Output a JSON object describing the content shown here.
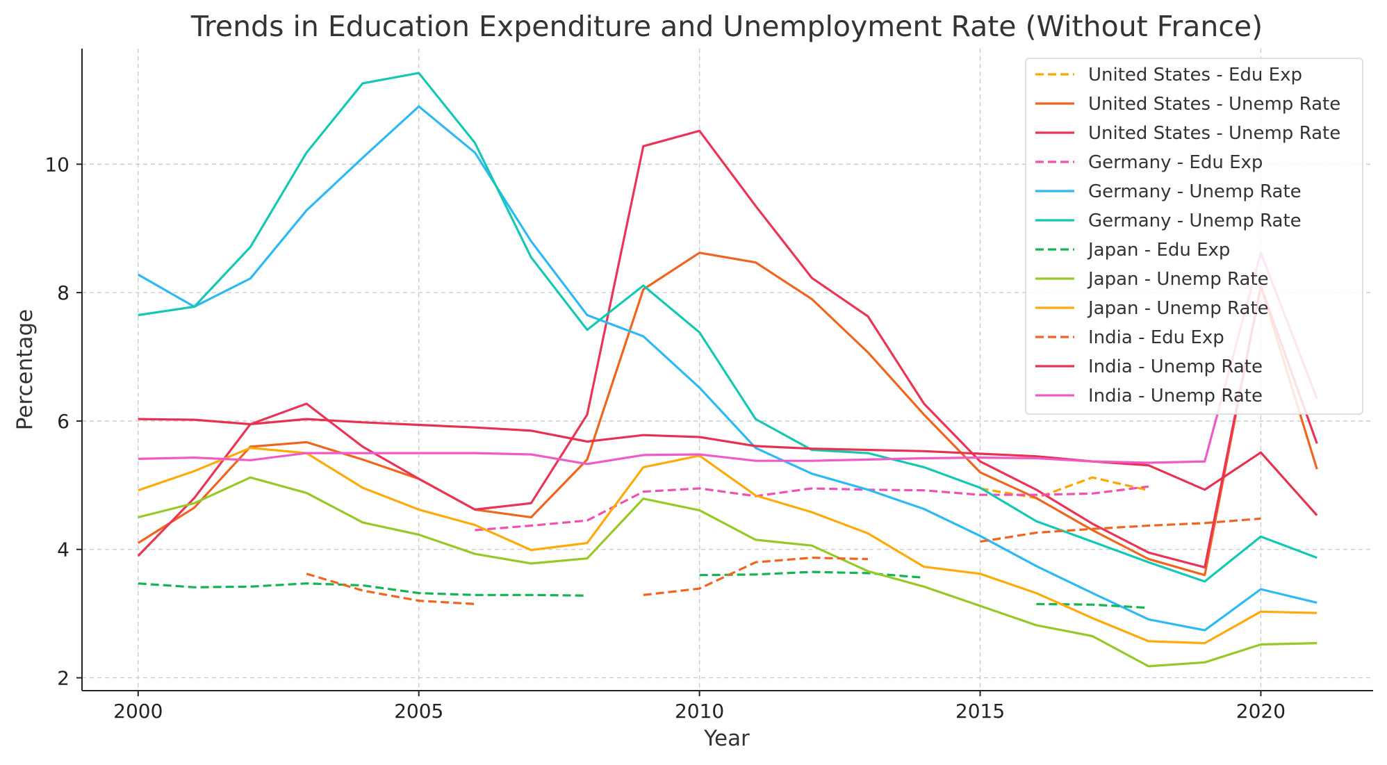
{
  "chart_data": {
    "type": "line",
    "title": "Trends in Education Expenditure and Unemployment Rate (Without France)",
    "xlabel": "Year",
    "ylabel": "Percentage",
    "xlim": [
      1999,
      2022
    ],
    "ylim": [
      1.8,
      11.8
    ],
    "xticks": [
      2000,
      2005,
      2010,
      2015,
      2020
    ],
    "yticks": [
      2,
      4,
      6,
      8,
      10
    ],
    "grid": true,
    "legend_position": "top-right",
    "x": [
      2000,
      2001,
      2002,
      2003,
      2004,
      2005,
      2006,
      2007,
      2008,
      2009,
      2010,
      2011,
      2012,
      2013,
      2014,
      2015,
      2016,
      2017,
      2018,
      2019,
      2020,
      2021
    ],
    "series": [
      {
        "name": "United States - Edu Exp",
        "color": "#ffa500",
        "dash": true,
        "values": [
          null,
          null,
          null,
          null,
          null,
          null,
          null,
          null,
          null,
          null,
          null,
          null,
          null,
          null,
          null,
          4.95,
          4.8,
          5.12,
          4.92,
          null,
          null,
          null
        ]
      },
      {
        "name": "United States - Unemp Rate",
        "color": "#f0641e",
        "dash": false,
        "values": [
          4.1,
          4.65,
          5.6,
          5.67,
          5.4,
          5.1,
          4.62,
          4.5,
          5.4,
          8.05,
          8.62,
          8.47,
          7.9,
          7.07,
          6.1,
          5.2,
          4.8,
          4.3,
          3.85,
          3.6,
          8.1,
          5.25
        ]
      },
      {
        "name": "United States - Unemp Rate",
        "color": "#eb3356",
        "dash": false,
        "values": [
          3.9,
          4.8,
          5.95,
          6.27,
          5.6,
          5.1,
          4.62,
          4.72,
          6.1,
          10.28,
          10.52,
          9.35,
          8.23,
          7.63,
          6.27,
          5.37,
          4.93,
          4.4,
          3.95,
          3.72,
          8.1,
          5.65
        ]
      },
      {
        "name": "Germany - Edu Exp",
        "color": "#f050b4",
        "dash": true,
        "values": [
          null,
          null,
          null,
          null,
          null,
          null,
          4.3,
          4.37,
          4.45,
          4.9,
          4.95,
          4.83,
          4.95,
          4.93,
          4.92,
          4.85,
          4.85,
          4.87,
          4.98,
          null,
          null,
          null
        ]
      },
      {
        "name": "Germany - Unemp Rate",
        "color": "#2db9f5",
        "dash": false,
        "values": [
          8.28,
          7.78,
          8.22,
          9.28,
          10.1,
          10.9,
          10.18,
          8.8,
          7.65,
          7.32,
          6.52,
          5.58,
          5.18,
          4.93,
          4.63,
          4.21,
          3.74,
          3.32,
          2.91,
          2.74,
          3.38,
          3.17
        ]
      },
      {
        "name": "Germany - Unemp Rate",
        "color": "#14c8b4",
        "dash": false,
        "values": [
          7.65,
          7.78,
          8.71,
          10.18,
          11.26,
          11.42,
          10.33,
          8.55,
          7.42,
          8.11,
          7.38,
          6.03,
          5.55,
          5.5,
          5.28,
          4.96,
          4.44,
          4.12,
          3.8,
          3.5,
          4.2,
          3.87
        ]
      },
      {
        "name": "Japan - Edu Exp",
        "color": "#14b450",
        "dash": true,
        "values": [
          3.47,
          3.41,
          3.42,
          3.47,
          3.44,
          3.32,
          3.29,
          3.29,
          3.28,
          null,
          3.6,
          3.61,
          3.65,
          3.63,
          3.56,
          null,
          3.15,
          3.14,
          3.09,
          null,
          null,
          null
        ]
      },
      {
        "name": "Japan - Unemp Rate",
        "color": "#96c828",
        "dash": false,
        "values": [
          4.5,
          4.72,
          5.12,
          4.88,
          4.42,
          4.23,
          3.93,
          3.78,
          3.86,
          4.79,
          4.61,
          4.15,
          4.06,
          3.66,
          3.42,
          3.12,
          2.82,
          2.65,
          2.18,
          2.24,
          2.52,
          2.54
        ]
      },
      {
        "name": "Japan - Unemp Rate",
        "color": "#ffaa0a",
        "dash": false,
        "values": [
          4.92,
          5.22,
          5.58,
          5.5,
          4.96,
          4.62,
          4.38,
          3.99,
          4.1,
          5.28,
          5.46,
          4.84,
          4.58,
          4.25,
          3.73,
          3.62,
          3.32,
          2.93,
          2.57,
          2.54,
          3.03,
          3.01
        ]
      },
      {
        "name": "India - Edu Exp",
        "color": "#f0641e",
        "dash": true,
        "values": [
          null,
          null,
          null,
          3.62,
          3.36,
          3.2,
          3.15,
          null,
          null,
          3.29,
          3.39,
          3.8,
          3.87,
          3.85,
          null,
          4.12,
          4.26,
          4.32,
          4.37,
          4.41,
          4.48,
          null
        ]
      },
      {
        "name": "India - Unemp Rate",
        "color": "#e63250",
        "dash": false,
        "values": [
          6.03,
          6.02,
          5.95,
          6.03,
          5.98,
          5.94,
          5.9,
          5.85,
          5.68,
          5.78,
          5.75,
          5.61,
          5.57,
          5.55,
          5.53,
          5.49,
          5.45,
          5.37,
          5.31,
          4.93,
          5.51,
          4.53
        ]
      },
      {
        "name": "India - Unemp Rate",
        "color": "#f05ac8",
        "dash": false,
        "values": [
          5.41,
          5.43,
          5.39,
          5.5,
          5.5,
          5.5,
          5.5,
          5.48,
          5.33,
          5.47,
          5.48,
          5.38,
          5.38,
          5.4,
          5.42,
          5.43,
          5.42,
          5.37,
          5.35,
          5.37,
          8.62,
          6.35
        ]
      }
    ]
  }
}
